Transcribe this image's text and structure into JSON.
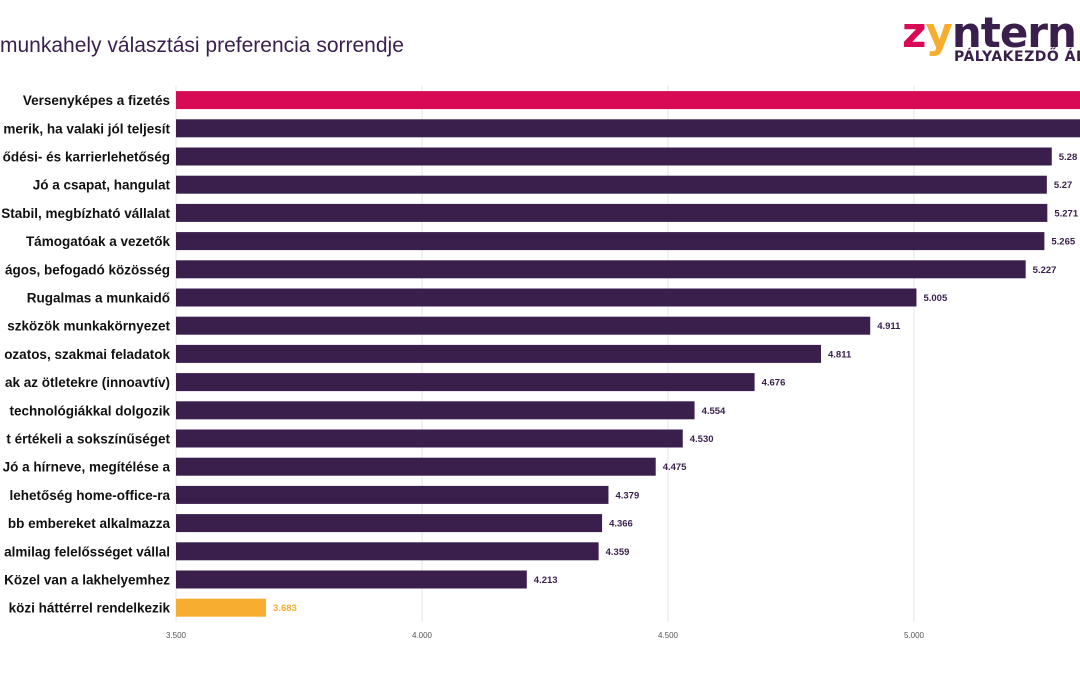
{
  "title": "munkahely választási preferencia sorrendje",
  "logo": {
    "word_z": "z",
    "word_y": "y",
    "word_rest": "ntern",
    "tagline": "PÁLYAKEZDŐ ÁLL"
  },
  "colors": {
    "primary": "#3a1f4d",
    "highlight_top": "#d90a55",
    "highlight_bottom": "#f7ad2f",
    "grid": "#e4e4e4"
  },
  "chart_data": {
    "type": "bar",
    "orientation": "horizontal",
    "categories": [
      "Versenyképes a fizetés",
      "merik, ha valaki jól teljesít",
      "ődési- és karrierlehetőség",
      "Jó a csapat, hangulat",
      "Stabil, megbízható vállalat",
      "Támogatóak a vezetők",
      "ágos, befogadó közösség",
      "Rugalmas a munkaidő",
      "szközök munkakörnyezet",
      "ozatos, szakmai feladatok",
      "ak az ötletekre (innoavtív)",
      "technológiákkal dolgozik",
      "t értékeli a sokszínűséget",
      "Jó a hírneve, megítélése a",
      "lehetőség home-office-ra",
      "bb embereket alkalmazza",
      "almilag felelősséget vállal",
      "Közel van a lakhelyemhez",
      "közi háttérrel rendelkezik"
    ],
    "values": [
      5.4,
      5.35,
      5.28,
      5.27,
      5.271,
      5.265,
      5.227,
      5.005,
      4.911,
      4.811,
      4.676,
      4.554,
      4.53,
      4.475,
      4.379,
      4.366,
      4.359,
      4.213,
      3.683
    ],
    "value_labels": [
      "",
      "",
      "5.28",
      "5.27",
      "5.271",
      "5.265",
      "5.227",
      "5.005",
      "4.911",
      "4.811",
      "4.676",
      "4.554",
      "4.530",
      "4.475",
      "4.379",
      "4.366",
      "4.359",
      "4.213",
      "3.683"
    ],
    "bar_colors": [
      "#d90a55",
      "#3a1f4d",
      "#3a1f4d",
      "#3a1f4d",
      "#3a1f4d",
      "#3a1f4d",
      "#3a1f4d",
      "#3a1f4d",
      "#3a1f4d",
      "#3a1f4d",
      "#3a1f4d",
      "#3a1f4d",
      "#3a1f4d",
      "#3a1f4d",
      "#3a1f4d",
      "#3a1f4d",
      "#3a1f4d",
      "#3a1f4d",
      "#f7ad2f"
    ],
    "value_label_colors": [
      "#3a1f4d",
      "#3a1f4d",
      "#3a1f4d",
      "#3a1f4d",
      "#3a1f4d",
      "#3a1f4d",
      "#3a1f4d",
      "#3a1f4d",
      "#3a1f4d",
      "#3a1f4d",
      "#3a1f4d",
      "#3a1f4d",
      "#3a1f4d",
      "#3a1f4d",
      "#3a1f4d",
      "#3a1f4d",
      "#3a1f4d",
      "#3a1f4d",
      "#f7ad2f"
    ],
    "xlim": [
      3.5,
      5.35
    ],
    "x_ticks": [
      3.5,
      4.0,
      4.5,
      5.0
    ],
    "x_tick_labels": [
      "3.500",
      "4.000",
      "4.500",
      "5.000"
    ],
    "grid": true,
    "legend": "none"
  }
}
